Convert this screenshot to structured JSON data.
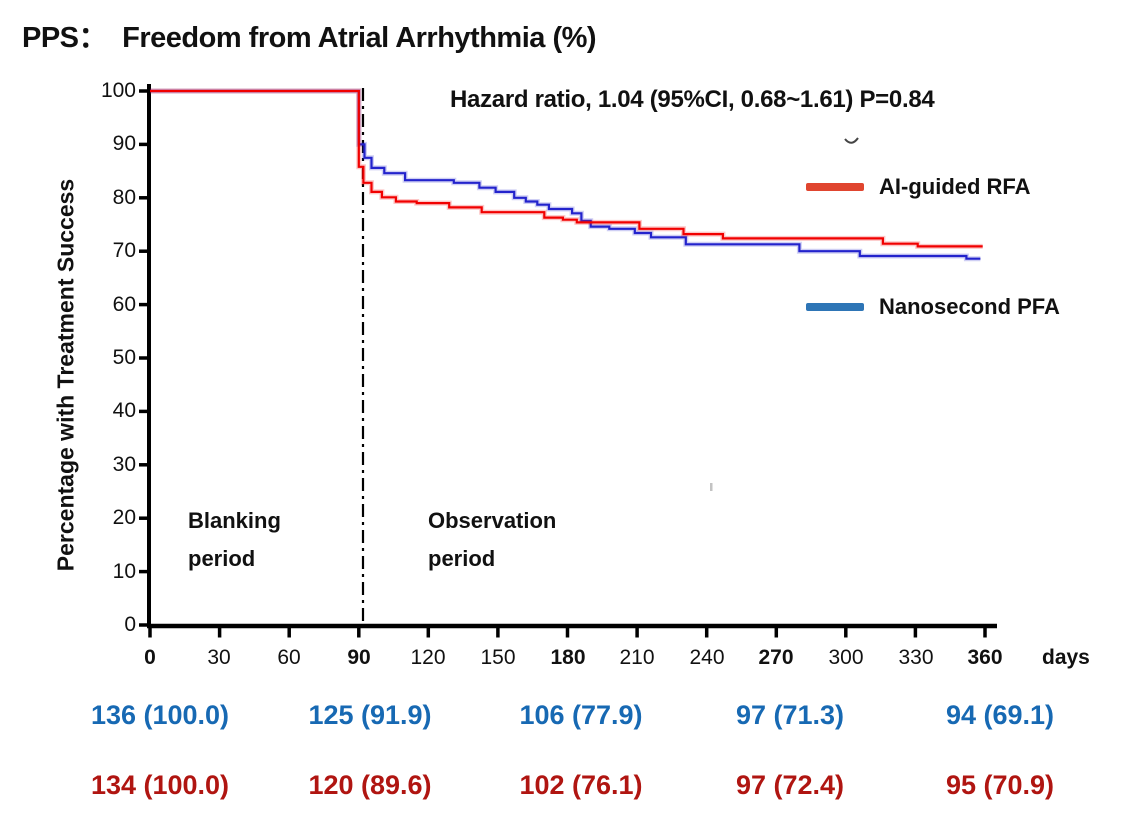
{
  "title": "PPS：  Freedom from Atrial Arrhythmia (%)",
  "annotations": {
    "hazard_ratio": "Hazard ratio, 1.04 (95%CI, 0.68~1.61) P=0.84",
    "blanking_period": "Blanking period",
    "observation_period": "Observation period"
  },
  "legend": [
    {
      "label": "AI-guided RFA",
      "color": "#e0452f"
    },
    {
      "label": "Nanosecond PFA",
      "color": "#2e75b6"
    }
  ],
  "axes": {
    "x_unit": "days",
    "x_ticks": [
      "0",
      "30",
      "60",
      "90",
      "120",
      "150",
      "180",
      "210",
      "240",
      "270",
      "300",
      "330",
      "360"
    ],
    "y_ticks": [
      "100",
      "90",
      "80",
      "70",
      "60",
      "50",
      "40",
      "30",
      "20",
      "10",
      "0"
    ],
    "y_label": "Percentage with Treatment Success"
  },
  "chart_data": {
    "type": "line",
    "subtype": "kaplan-meier-step",
    "title": "PPS: Freedom from Atrial Arrhythmia (%)",
    "xlabel": "days",
    "ylabel": "Percentage with Treatment Success",
    "xlim": [
      0,
      360
    ],
    "ylim": [
      0,
      100
    ],
    "x_tick_step": 30,
    "y_tick_step": 10,
    "grid": false,
    "legend_position": "right",
    "blanking_boundary_day": 90,
    "annotation": "Hazard ratio, 1.04 (95%CI, 0.68~1.61) P=0.84",
    "series": [
      {
        "name": "Nanosecond PFA",
        "color": "#2323cc",
        "end_day": 358,
        "steps": [
          [
            0,
            100
          ],
          [
            90,
            90.0
          ],
          [
            92.5,
            87.5
          ],
          [
            95.5,
            85.6
          ],
          [
            101,
            84.6
          ],
          [
            110,
            83.3
          ],
          [
            131,
            82.8
          ],
          [
            142,
            81.9
          ],
          [
            149,
            81.1
          ],
          [
            157,
            80.0
          ],
          [
            162,
            79.3
          ],
          [
            167,
            78.7
          ],
          [
            172,
            77.9
          ],
          [
            182,
            77.1
          ],
          [
            186,
            75.7
          ],
          [
            190,
            74.6
          ],
          [
            198,
            74.2
          ],
          [
            209,
            73.4
          ],
          [
            216,
            72.6
          ],
          [
            231,
            71.3
          ],
          [
            280,
            70.0
          ],
          [
            306,
            69.1
          ],
          [
            352,
            68.6
          ]
        ]
      },
      {
        "name": "AI-guided RFA",
        "color": "#f10000",
        "end_day": 359,
        "steps": [
          [
            0,
            100
          ],
          [
            90,
            85.8
          ],
          [
            92,
            82.8
          ],
          [
            95.5,
            81.1
          ],
          [
            100,
            80.1
          ],
          [
            106,
            79.3
          ],
          [
            115,
            79.0
          ],
          [
            129,
            78.2
          ],
          [
            143,
            77.3
          ],
          [
            170,
            76.3
          ],
          [
            178,
            75.9
          ],
          [
            184,
            75.4
          ],
          [
            211,
            74.2
          ],
          [
            230,
            73.2
          ],
          [
            247,
            72.4
          ],
          [
            316,
            71.4
          ],
          [
            331,
            70.9
          ]
        ]
      }
    ],
    "key_points": {
      "Nanosecond PFA": {
        "0": 100.0,
        "90": 91.9,
        "180": 77.9,
        "270": 71.3,
        "360": 69.1
      },
      "AI-guided RFA": {
        "0": 100.0,
        "90": 89.6,
        "180": 76.1,
        "270": 72.4,
        "360": 70.9
      }
    }
  },
  "risk_table": {
    "timepoints_days": [
      0,
      90,
      180,
      270,
      360
    ],
    "rows": [
      {
        "name": "Nanosecond PFA",
        "color": "#1769b3",
        "values": [
          "136 (100.0)",
          "125 (91.9)",
          "106 (77.9)",
          "97 (71.3)",
          "94 (69.1)"
        ]
      },
      {
        "name": "AI-guided RFA",
        "color": "#b01511",
        "values": [
          "134 (100.0)",
          "120 (89.6)",
          "102 (76.1)",
          "97 (72.4)",
          "95 (70.9)"
        ]
      }
    ]
  }
}
